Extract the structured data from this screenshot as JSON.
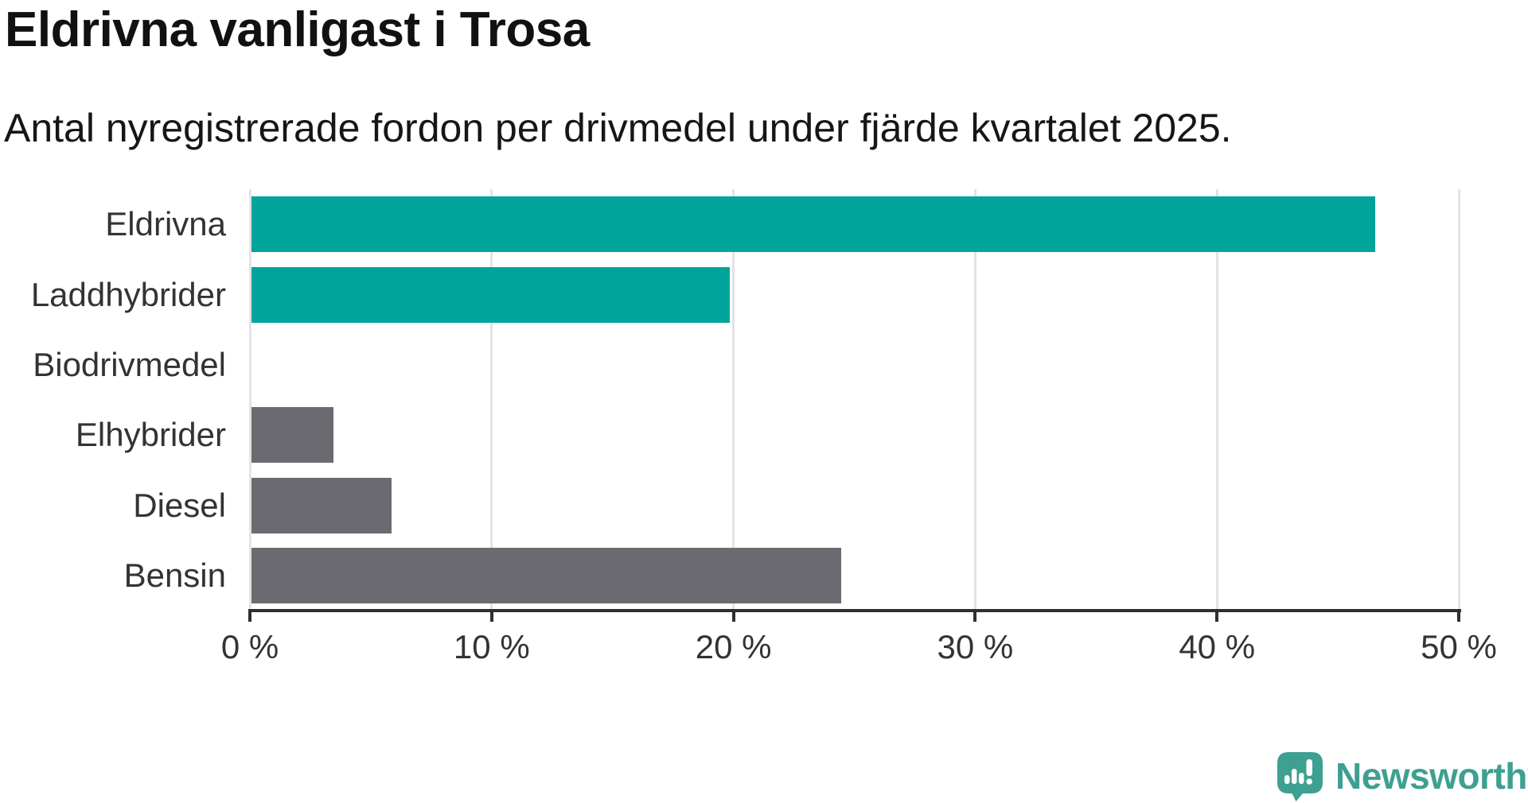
{
  "header": {
    "title": "Eldrivna vanligast i Trosa",
    "subtitle": "Antal nyregistrerade fordon per drivmedel under fjärde kvartalet 2025."
  },
  "chart_data": {
    "type": "bar",
    "orientation": "horizontal",
    "title": "Eldrivna vanligast i Trosa",
    "subtitle": "Antal nyregistrerade fordon per drivmedel under fjärde kvartalet 2025.",
    "categories": [
      "Eldrivna",
      "Laddhybrider",
      "Biodrivmedel",
      "Elhybrider",
      "Diesel",
      "Bensin"
    ],
    "values": [
      46.5,
      19.8,
      0,
      3.4,
      5.8,
      24.4
    ],
    "unit": "%",
    "xlabel": "",
    "ylabel": "",
    "xlim": [
      0,
      50
    ],
    "x_ticks": [
      {
        "value": 0,
        "label": "0 %"
      },
      {
        "value": 10,
        "label": "10 %"
      },
      {
        "value": 20,
        "label": "20 %"
      },
      {
        "value": 30,
        "label": "30 %"
      },
      {
        "value": 40,
        "label": "40 %"
      },
      {
        "value": 50,
        "label": "50 %"
      }
    ],
    "grid": true,
    "legend": false,
    "bar_colors": [
      "#00a49b",
      "#00a49b",
      "#00a49b",
      "#6b6a70",
      "#6b6a70",
      "#6b6a70"
    ]
  },
  "branding": {
    "name": "Newsworthy",
    "logo_icon": "newsworthy-speech-bubble-chart-icon",
    "color": "#3da091"
  },
  "colors": {
    "bar_teal": "#00a49b",
    "bar_gray": "#6b6a70",
    "axis": "#2f2f2f",
    "gridline": "#e3e3e3",
    "text_dark": "#161616",
    "text_label": "#333333",
    "background": "#ffffff"
  }
}
